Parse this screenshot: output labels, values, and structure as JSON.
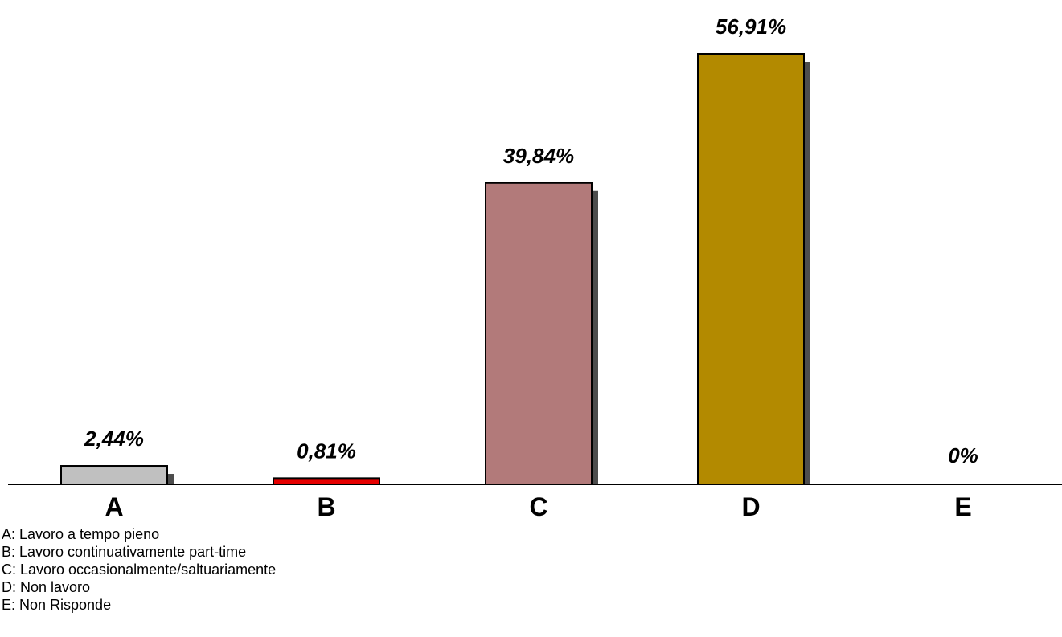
{
  "chart_data": {
    "type": "bar",
    "categories": [
      "A",
      "B",
      "C",
      "D",
      "E"
    ],
    "values": [
      2.44,
      0.81,
      39.84,
      56.91,
      0
    ],
    "value_labels": [
      "2,44%",
      "0,81%",
      "39,84%",
      "56,91%",
      "0%"
    ],
    "colors": [
      "#c0c0c0",
      "#e60000",
      "#b27a7a",
      "#b38a00",
      "#b38a00"
    ],
    "ylim": [
      0,
      60
    ],
    "grid": false,
    "legend": [
      "A: Lavoro a tempo pieno",
      "B: Lavoro continuativamente part-time",
      "C: Lavoro occasionalmente/saltuariamente",
      "D: Non lavoro",
      "E: Non Risponde"
    ]
  }
}
